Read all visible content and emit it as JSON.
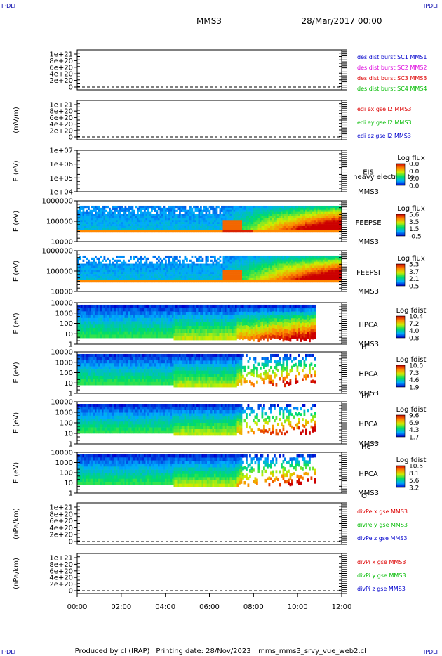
{
  "corner_label": "IPDLI",
  "header": {
    "spacecraft": "MMS3",
    "date": "28/Mar/2017 00:00"
  },
  "footer": {
    "produced_by": "Produced by cl (IRAP)",
    "printing_date": "Printing date: 28/Nov/2023",
    "script": "mms_mms3_srvy_vue_web2.cl"
  },
  "time_axis": {
    "ticks": [
      "00:00",
      "02:00",
      "04:00",
      "06:00",
      "08:00",
      "10:00",
      "12:00"
    ],
    "start_hour": 0,
    "end_hour": 12
  },
  "colors": {
    "red": "#dd0000",
    "magenta": "#dd00dd",
    "green": "#00bb00",
    "blue": "#0000cc"
  },
  "chart_data": [
    {
      "type": "line",
      "id": "des_dist",
      "ylabel": "",
      "ticks": [
        "1e+21",
        "8e+20",
        "6e+20",
        "4e+20",
        "2e+20",
        "0"
      ],
      "ylim": [
        0,
        1.1e+21
      ],
      "zero_dashed": true,
      "series": [
        {
          "name": "des dist burst SC1 MMS1",
          "color": "#0000cc"
        },
        {
          "name": "des dist burst SC2 MMS2",
          "color": "#dd00dd"
        },
        {
          "name": "des dist burst SC3 MMS3",
          "color": "#dd0000"
        },
        {
          "name": "des dist burst SC4 MMS4",
          "color": "#00bb00"
        }
      ]
    },
    {
      "type": "line",
      "id": "edi",
      "ylabel": "(mV/m)",
      "ticks": [
        "1e+21",
        "8e+20",
        "6e+20",
        "4e+20",
        "2e+20",
        "0"
      ],
      "ylim": [
        0,
        1.1e+21
      ],
      "zero_dashed": true,
      "series": [
        {
          "name": "edi ex gse l2 MMS3",
          "color": "#dd0000"
        },
        {
          "name": "edi ey gse l2 MMS3",
          "color": "#00bb00"
        },
        {
          "name": "edi ez gse l2 MMS3",
          "color": "#0000cc"
        }
      ]
    },
    {
      "type": "heatmap",
      "id": "eis",
      "ylabel": "E (eV)",
      "ticks": [
        "1e+07",
        "1e+06",
        "1e+05",
        "1e+04"
      ],
      "instrument": "EIS",
      "spacecraft": "MMS3",
      "extra": "heavy electron to",
      "cbar_title": "Log flux",
      "cbar_ticks": [
        "0.0",
        "0.0",
        "0.0",
        "0.0"
      ],
      "fill": "none"
    },
    {
      "type": "heatmap",
      "id": "feeps_e",
      "ylabel": "E (eV)",
      "ticks": [
        "1000000",
        "100000",
        "10000"
      ],
      "instrument": "FEEPSE",
      "spacecraft": "MMS3",
      "cbar_title": "Log flux",
      "cbar_ticks": [
        "5.6",
        "3.5",
        "1.5",
        "-0.5"
      ],
      "fill": "feepse",
      "data_end_hour": 12
    },
    {
      "type": "heatmap",
      "id": "feeps_i",
      "ylabel": "E (eV)",
      "ticks": [
        "1000000",
        "100000",
        "10000"
      ],
      "instrument": "FEEPSI",
      "spacecraft": "MMS3",
      "cbar_title": "Log flux",
      "cbar_ticks": [
        "5.3",
        "3.7",
        "2.1",
        "0.5"
      ],
      "fill": "feepsi",
      "data_end_hour": 12
    },
    {
      "type": "heatmap",
      "id": "hpca_h",
      "ylabel": "E (eV)",
      "ticks": [
        "10000",
        "1000",
        "100",
        "10",
        "1"
      ],
      "instrument": "HPCA",
      "spacecraft": "MMS3",
      "species": "H",
      "species_sup": "+",
      "cbar_title": "Log fdist",
      "cbar_ticks": [
        "10.4",
        "7.2",
        "4.0",
        "0.8"
      ],
      "fill": "hpca_h",
      "data_end_hour": 10.75
    },
    {
      "type": "heatmap",
      "id": "hpca_he",
      "ylabel": "E (eV)",
      "ticks": [
        "10000",
        "1000",
        "100",
        "10",
        "1"
      ],
      "instrument": "HPCA",
      "spacecraft": "MMS3",
      "species": "He",
      "species_sup": "+",
      "cbar_title": "Log fdist",
      "cbar_ticks": [
        "10.0",
        "7.3",
        "4.6",
        "1.9"
      ],
      "fill": "hpca_he",
      "data_end_hour": 10.75
    },
    {
      "type": "heatmap",
      "id": "hpca_hepp",
      "ylabel": "E (eV)",
      "ticks": [
        "10000",
        "1000",
        "100",
        "10",
        "1"
      ],
      "instrument": "HPCA",
      "spacecraft": "MMS3",
      "species": "He",
      "species_sup": "++",
      "cbar_title": "Log fdist",
      "cbar_ticks": [
        "9.6",
        "6.9",
        "4.3",
        "1.7"
      ],
      "fill": "hpca_hepp",
      "data_end_hour": 10.75
    },
    {
      "type": "heatmap",
      "id": "hpca_o",
      "ylabel": "E (eV)",
      "ticks": [
        "10000",
        "1000",
        "100",
        "10",
        "1"
      ],
      "instrument": "HPCA",
      "spacecraft": "MMS3",
      "species": "O",
      "species_sup": "+",
      "cbar_title": "Log fdist",
      "cbar_ticks": [
        "10.5",
        "8.1",
        "5.6",
        "3.2"
      ],
      "fill": "hpca_o",
      "data_end_hour": 10.75
    },
    {
      "type": "line",
      "id": "divpe",
      "ylabel": "(nPa/km)",
      "ticks": [
        "1e+21",
        "8e+20",
        "6e+20",
        "4e+20",
        "2e+20",
        "0"
      ],
      "ylim": [
        0,
        1.1e+21
      ],
      "zero_dashed": true,
      "series": [
        {
          "name": "divPe x gse MMS3",
          "color": "#dd0000"
        },
        {
          "name": "divPe y gse MMS3",
          "color": "#00bb00"
        },
        {
          "name": "divPe z gse MMS3",
          "color": "#0000cc"
        }
      ]
    },
    {
      "type": "line",
      "id": "divpi",
      "ylabel": "(nPa/km)",
      "ticks": [
        "1e+21",
        "8e+20",
        "6e+20",
        "4e+20",
        "2e+20",
        "0"
      ],
      "ylim": [
        0,
        1.1e+21
      ],
      "zero_dashed": true,
      "series": [
        {
          "name": "divPi x gse MMS3",
          "color": "#dd0000"
        },
        {
          "name": "divPi y gse MMS3",
          "color": "#00bb00"
        },
        {
          "name": "divPi z gse MMS3",
          "color": "#0000cc"
        }
      ]
    }
  ]
}
